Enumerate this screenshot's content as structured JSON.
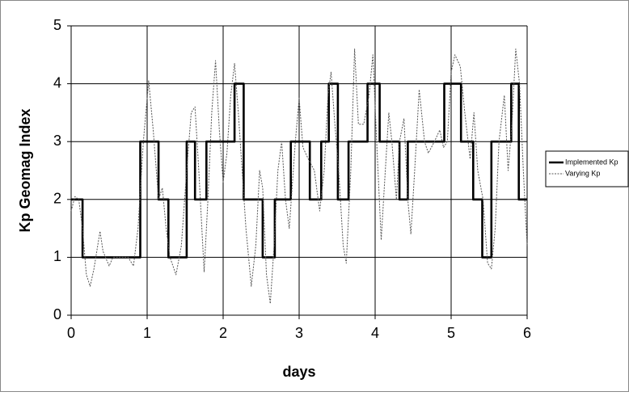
{
  "chart_data": {
    "type": "line",
    "xlabel": "days",
    "ylabel": "Kp Geomag Index",
    "xlim": [
      0,
      6
    ],
    "xticks": [
      0,
      1,
      2,
      3,
      4,
      5,
      6
    ],
    "ylim": [
      0,
      5
    ],
    "yticks": [
      0,
      1,
      2,
      3,
      4,
      5
    ],
    "grid": true,
    "legend": "right",
    "series": [
      {
        "name": "Implemented Kp",
        "color": "#000000",
        "style": "solid",
        "x": [
          0,
          0.15,
          0.15,
          0.91,
          0.91,
          1.15,
          1.15,
          1.28,
          1.28,
          1.52,
          1.52,
          1.63,
          1.63,
          1.78,
          1.78,
          2.15,
          2.15,
          2.27,
          2.27,
          2.52,
          2.52,
          2.68,
          2.68,
          2.89,
          2.89,
          3.14,
          3.14,
          3.29,
          3.29,
          3.39,
          3.39,
          3.51,
          3.51,
          3.65,
          3.65,
          3.9,
          3.9,
          4.06,
          4.06,
          4.32,
          4.32,
          4.43,
          4.43,
          4.91,
          4.91,
          5.13,
          5.13,
          5.29,
          5.29,
          5.41,
          5.41,
          5.53,
          5.53,
          5.79,
          5.79,
          5.89,
          5.89,
          6
        ],
        "values": [
          2,
          2,
          1,
          1,
          3,
          3,
          2,
          2,
          1,
          1,
          3,
          3,
          2,
          2,
          3,
          3,
          4,
          4,
          2,
          2,
          1,
          1,
          2,
          2,
          3,
          3,
          2,
          2,
          3,
          3,
          4,
          4,
          2,
          2,
          3,
          3,
          4,
          4,
          3,
          3,
          2,
          2,
          3,
          3,
          4,
          4,
          3,
          3,
          2,
          2,
          1,
          1,
          3,
          3,
          4,
          4,
          2,
          2
        ]
      },
      {
        "name": "Varying Kp",
        "color": "#555555",
        "style": "dashed",
        "x": [
          0,
          0.05,
          0.1,
          0.15,
          0.2,
          0.25,
          0.3,
          0.38,
          0.42,
          0.5,
          0.55,
          0.65,
          0.75,
          0.82,
          0.88,
          0.95,
          1.02,
          1.08,
          1.15,
          1.2,
          1.25,
          1.3,
          1.38,
          1.45,
          1.52,
          1.58,
          1.63,
          1.68,
          1.75,
          1.8,
          1.85,
          1.9,
          1.95,
          2.0,
          2.05,
          2.1,
          2.15,
          2.2,
          2.25,
          2.3,
          2.37,
          2.43,
          2.48,
          2.52,
          2.57,
          2.62,
          2.67,
          2.72,
          2.77,
          2.82,
          2.87,
          2.95,
          3.0,
          3.05,
          3.12,
          3.2,
          3.27,
          3.33,
          3.38,
          3.42,
          3.47,
          3.52,
          3.58,
          3.62,
          3.68,
          3.73,
          3.78,
          3.85,
          3.92,
          3.97,
          4.02,
          4.08,
          4.12,
          4.18,
          4.22,
          4.28,
          4.32,
          4.38,
          4.43,
          4.47,
          4.52,
          4.58,
          4.65,
          4.7,
          4.78,
          4.85,
          4.9,
          4.95,
          5.0,
          5.05,
          5.12,
          5.18,
          5.25,
          5.3,
          5.35,
          5.42,
          5.48,
          5.53,
          5.58,
          5.63,
          5.7,
          5.75,
          5.8,
          5.85,
          5.9,
          5.95,
          6.0
        ],
        "values": [
          1.8,
          2.05,
          2.0,
          1.5,
          0.7,
          0.5,
          0.8,
          1.45,
          1.1,
          0.85,
          1.0,
          1.0,
          1.0,
          0.85,
          1.5,
          3.0,
          4.05,
          3.2,
          2.0,
          2.2,
          1.5,
          1.0,
          0.7,
          1.2,
          2.5,
          3.5,
          3.6,
          2.5,
          0.75,
          2.0,
          3.5,
          4.4,
          3.2,
          2.3,
          2.8,
          3.8,
          4.35,
          3.5,
          2.5,
          1.5,
          0.5,
          1.2,
          2.5,
          2.2,
          0.7,
          0.2,
          1.2,
          2.5,
          3.0,
          2.0,
          1.5,
          3.0,
          3.75,
          2.9,
          2.7,
          2.5,
          1.8,
          2.5,
          3.8,
          4.2,
          3.3,
          2.5,
          1.2,
          0.9,
          2.5,
          4.6,
          3.3,
          3.3,
          3.8,
          4.5,
          3.0,
          1.3,
          2.2,
          3.5,
          3.0,
          2.0,
          3.0,
          3.4,
          2.0,
          1.4,
          2.5,
          3.9,
          3.0,
          2.8,
          3.0,
          3.2,
          2.9,
          3.0,
          4.2,
          4.5,
          4.3,
          3.5,
          2.7,
          3.5,
          2.5,
          2.0,
          0.9,
          0.8,
          1.5,
          3.0,
          3.8,
          2.5,
          3.3,
          4.6,
          4.0,
          2.5,
          1.2
        ]
      }
    ]
  }
}
